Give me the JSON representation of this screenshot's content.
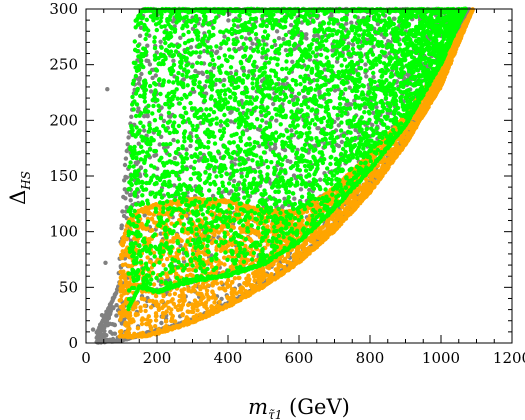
{
  "chart_data": {
    "type": "scatter",
    "xlabel": {
      "main": "m",
      "sub": "τ̃1",
      "unit": " (GeV)"
    },
    "ylabel": {
      "main": "Δ",
      "sub": "HS"
    },
    "xlim": [
      0,
      1200
    ],
    "ylim": [
      0,
      300
    ],
    "x_ticks": [
      0,
      200,
      400,
      600,
      800,
      1000,
      1200
    ],
    "y_ticks": [
      0,
      50,
      100,
      150,
      200,
      250,
      300
    ],
    "grid": false,
    "series": [
      {
        "color": "#808080",
        "region": {
          "x_range": [
            30,
            1080
          ],
          "y_min": 0,
          "upper_edge": [
            [
              30,
              10
            ],
            [
              60,
              30
            ],
            [
              90,
              50
            ],
            [
              110,
              160
            ],
            [
              130,
              210
            ],
            [
              150,
              270
            ],
            [
              160,
              300
            ],
            [
              1080,
              300
            ]
          ],
          "lower_edge": [
            [
              30,
              0
            ],
            [
              100,
              2
            ],
            [
              200,
              10
            ],
            [
              300,
              20
            ],
            [
              400,
              34
            ],
            [
              500,
              52
            ],
            [
              600,
              75
            ],
            [
              700,
              105
            ],
            [
              800,
              140
            ],
            [
              900,
              185
            ],
            [
              1000,
              240
            ],
            [
              1080,
              300
            ]
          ]
        },
        "isolated_points": [
          [
            60,
            228
          ],
          [
            20,
            12
          ],
          [
            45,
            25
          ],
          [
            55,
            72
          ]
        ]
      },
      {
        "color": "#ffa500",
        "region": {
          "x_range": [
            95,
            1090
          ],
          "upper_edge": [
            [
              95,
              40
            ],
            [
              100,
              90
            ],
            [
              120,
              110
            ],
            [
              150,
              120
            ],
            [
              200,
              125
            ],
            [
              300,
              130
            ],
            [
              400,
              128
            ],
            [
              500,
              120
            ],
            [
              600,
              118
            ],
            [
              700,
              140
            ],
            [
              800,
              170
            ],
            [
              900,
              205
            ],
            [
              1000,
              250
            ],
            [
              1090,
              300
            ]
          ],
          "lower_edge": [
            [
              95,
              5
            ],
            [
              150,
              5
            ],
            [
              200,
              8
            ],
            [
              300,
              18
            ],
            [
              400,
              32
            ],
            [
              500,
              50
            ],
            [
              600,
              72
            ],
            [
              700,
              100
            ],
            [
              800,
              135
            ],
            [
              900,
              178
            ],
            [
              1000,
              230
            ],
            [
              1090,
              300
            ]
          ]
        }
      },
      {
        "color": "#00ff00",
        "region": {
          "x_range": [
            120,
            1070
          ],
          "upper_edge": [
            [
              120,
              140
            ],
            [
              140,
              290
            ],
            [
              160,
              300
            ],
            [
              1070,
              300
            ]
          ],
          "lower_edge": [
            [
              120,
              30
            ],
            [
              150,
              50
            ],
            [
              200,
              45
            ],
            [
              300,
              55
            ],
            [
              400,
              60
            ],
            [
              500,
              70
            ],
            [
              600,
              90
            ],
            [
              700,
              120
            ],
            [
              800,
              155
            ],
            [
              900,
              195
            ],
            [
              1000,
              250
            ],
            [
              1070,
              300
            ]
          ]
        }
      }
    ]
  }
}
